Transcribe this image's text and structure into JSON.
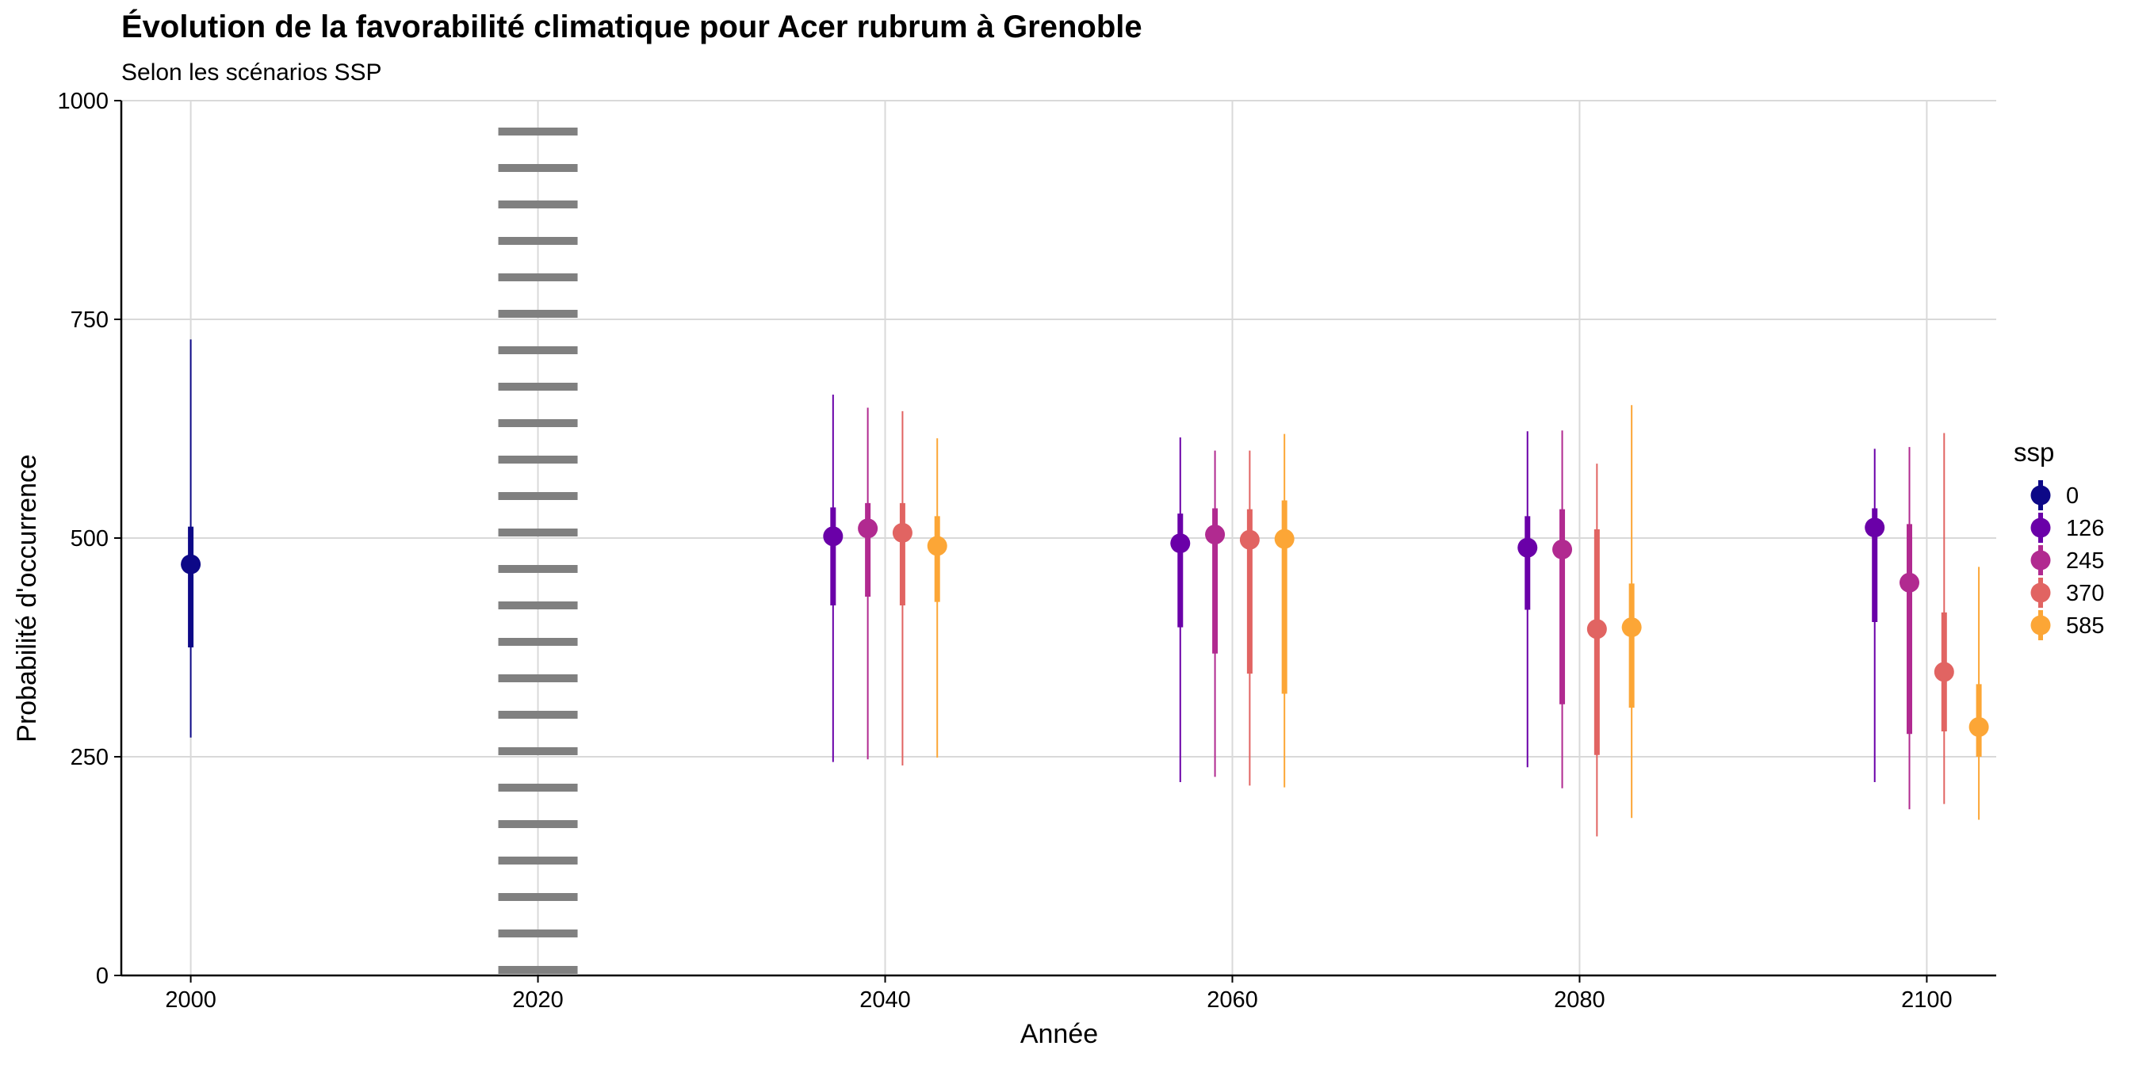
{
  "chart_data": {
    "type": "scatter",
    "title": "Évolution de la favorabilité climatique pour Acer rubrum à Grenoble",
    "subtitle": "Selon les scénarios SSP",
    "xlabel": "Année",
    "ylabel": "Probabilité d'occurrence",
    "xlim": [
      1996,
      2104
    ],
    "ylim": [
      0,
      1000
    ],
    "x_ticks": [
      2000,
      2020,
      2040,
      2060,
      2080,
      2100
    ],
    "y_ticks": [
      0,
      250,
      500,
      750,
      1000
    ],
    "grid": true,
    "vline": {
      "x": 2020,
      "style": "dotted"
    },
    "legend": {
      "title": "ssp",
      "position": "right"
    },
    "series": [
      {
        "name": "0",
        "color": "#0d0887",
        "points": [
          {
            "x": 2000,
            "y": 470,
            "inner": [
              375,
              513
            ],
            "outer": [
              272,
              727
            ]
          }
        ]
      },
      {
        "name": "126",
        "color": "#6a00a8",
        "points": [
          {
            "x": 2037,
            "y": 502,
            "inner": [
              423,
              535
            ],
            "outer": [
              244,
              664
            ]
          },
          {
            "x": 2057,
            "y": 494,
            "inner": [
              398,
              528
            ],
            "outer": [
              221,
              615
            ]
          },
          {
            "x": 2077,
            "y": 489,
            "inner": [
              418,
              525
            ],
            "outer": [
              238,
              622
            ]
          },
          {
            "x": 2097,
            "y": 512,
            "inner": [
              404,
              534
            ],
            "outer": [
              221,
              602
            ]
          }
        ]
      },
      {
        "name": "245",
        "color": "#b12a90",
        "points": [
          {
            "x": 2039,
            "y": 511,
            "inner": [
              433,
              540
            ],
            "outer": [
              247,
              649
            ]
          },
          {
            "x": 2059,
            "y": 504,
            "inner": [
              368,
              534
            ],
            "outer": [
              227,
              600
            ]
          },
          {
            "x": 2079,
            "y": 487,
            "inner": [
              310,
              533
            ],
            "outer": [
              214,
              623
            ]
          },
          {
            "x": 2099,
            "y": 449,
            "inner": [
              276,
              516
            ],
            "outer": [
              190,
              604
            ]
          }
        ]
      },
      {
        "name": "370",
        "color": "#e16462",
        "points": [
          {
            "x": 2041,
            "y": 506,
            "inner": [
              423,
              540
            ],
            "outer": [
              240,
              645
            ]
          },
          {
            "x": 2061,
            "y": 498,
            "inner": [
              345,
              533
            ],
            "outer": [
              217,
              600
            ]
          },
          {
            "x": 2081,
            "y": 396,
            "inner": [
              252,
              510
            ],
            "outer": [
              159,
              585
            ]
          },
          {
            "x": 2101,
            "y": 347,
            "inner": [
              279,
              415
            ],
            "outer": [
              196,
              620
            ]
          }
        ]
      },
      {
        "name": "585",
        "color": "#fca636",
        "points": [
          {
            "x": 2043,
            "y": 491,
            "inner": [
              427,
              525
            ],
            "outer": [
              249,
              614
            ]
          },
          {
            "x": 2063,
            "y": 499,
            "inner": [
              322,
              543
            ],
            "outer": [
              215,
              619
            ]
          },
          {
            "x": 2083,
            "y": 398,
            "inner": [
              306,
              448
            ],
            "outer": [
              180,
              652
            ]
          },
          {
            "x": 2103,
            "y": 284,
            "inner": [
              250,
              333
            ],
            "outer": [
              178,
              467
            ]
          }
        ]
      }
    ]
  }
}
